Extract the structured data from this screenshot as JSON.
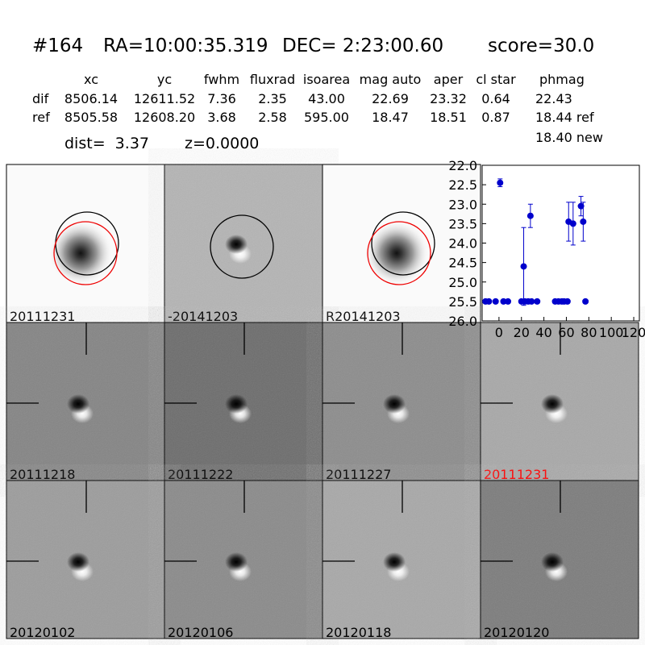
{
  "header": {
    "id": "#164",
    "ra": "RA=10:00:35.319",
    "dec": "DEC= 2:23:00.60",
    "score": "score=30.0"
  },
  "table": {
    "columns": [
      "xc",
      "yc",
      "fwhm",
      "fluxrad",
      "isoarea",
      "mag auto",
      "aper",
      "cl star",
      "phmag"
    ],
    "rows": [
      {
        "label": "dif",
        "cells": [
          "8506.14",
          "12611.52",
          "7.36",
          "2.35",
          "43.00",
          "22.69",
          "23.32",
          "0.64",
          "22.43"
        ]
      },
      {
        "label": "ref",
        "cells": [
          "8505.58",
          "12608.20",
          "3.68",
          "2.58",
          "595.00",
          "18.47",
          "18.51",
          "0.87",
          "18.44 ref"
        ]
      }
    ],
    "extra": "18.40 new"
  },
  "distance": {
    "dist": "dist=  3.37",
    "z": "z=0.0000"
  },
  "stamps": [
    [
      "20111231",
      "-20141203",
      "R20141203"
    ],
    [
      "20111218",
      "20111222",
      "20111227",
      "20111231"
    ],
    [
      "20120102",
      "20120106",
      "20120118",
      "20120120"
    ]
  ],
  "chart_data": {
    "type": "scatter",
    "color": "#0000cc",
    "x": [
      -12,
      -9,
      -3,
      1,
      4,
      8,
      20,
      22,
      23,
      26,
      28,
      29,
      34,
      50,
      53,
      56,
      58,
      61,
      62,
      66,
      73,
      75,
      77
    ],
    "values": [
      25.5,
      25.5,
      25.5,
      22.45,
      25.5,
      25.5,
      25.5,
      24.6,
      25.5,
      25.5,
      23.3,
      25.5,
      25.5,
      25.5,
      25.5,
      25.5,
      25.5,
      25.5,
      23.45,
      23.5,
      23.05,
      23.45,
      25.5
    ],
    "errors": [
      null,
      null,
      null,
      0.1,
      null,
      null,
      null,
      1.0,
      null,
      null,
      0.3,
      null,
      null,
      null,
      null,
      null,
      null,
      null,
      0.5,
      0.55,
      0.25,
      0.5,
      null
    ],
    "xlim": [
      -15,
      125
    ],
    "xticks": [
      0,
      20,
      40,
      60,
      80,
      100,
      120
    ],
    "ylim": [
      22,
      26
    ],
    "y_inverted": true,
    "yticks": [
      {
        "value": 22,
        "label": "22.0"
      },
      {
        "value": 22.5,
        "label": "22.5"
      },
      {
        "value": 23,
        "label": "23.0"
      },
      {
        "value": 23.5,
        "label": "23.5"
      },
      {
        "value": 24,
        "label": "24.0"
      },
      {
        "value": 24.5,
        "label": "24.5"
      },
      {
        "value": 25,
        "label": "25.0"
      },
      {
        "value": 25.5,
        "label": "25.5"
      },
      {
        "value": 26,
        "label": "26.0"
      }
    ]
  }
}
